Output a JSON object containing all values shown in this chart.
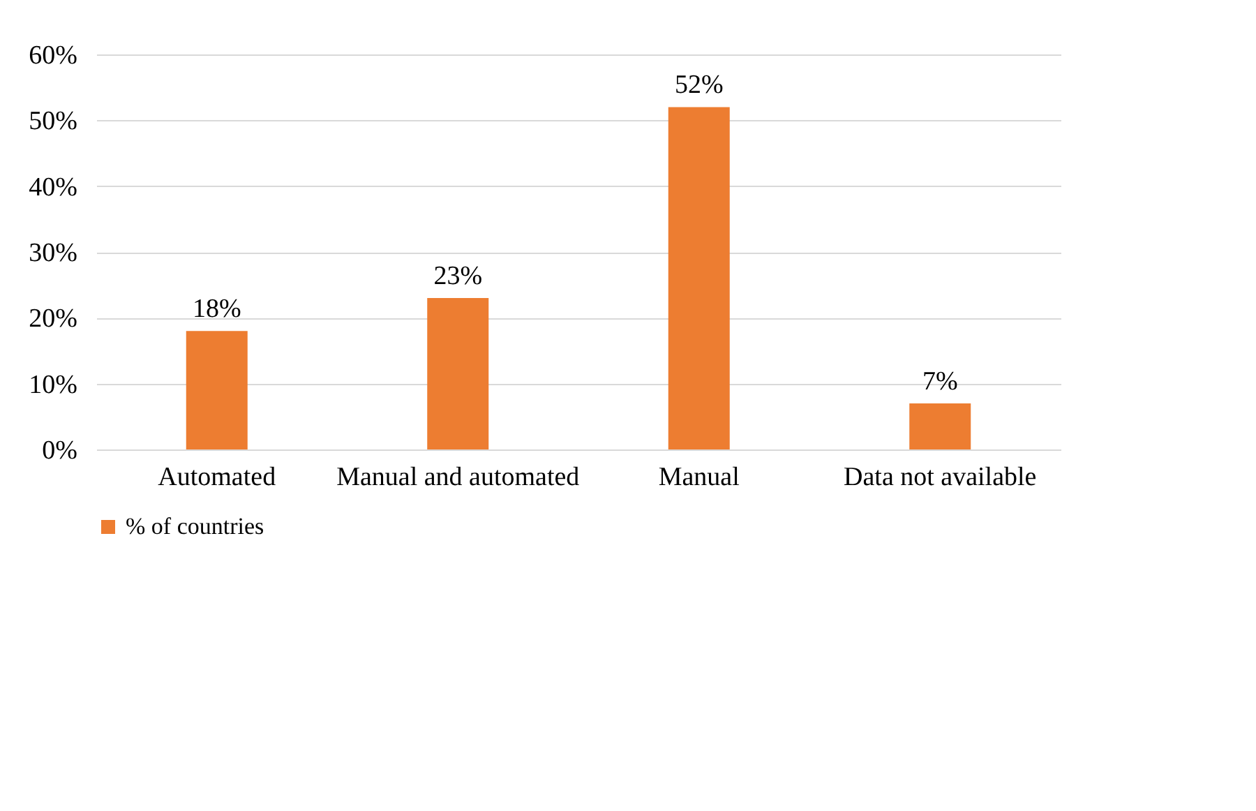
{
  "chart_data": {
    "type": "bar",
    "categories": [
      "Automated",
      "Manual and automated",
      "Manual",
      "Data not available"
    ],
    "series": [
      {
        "name": "% of countries",
        "color": "#ed7d31",
        "values": [
          18,
          23,
          52,
          7
        ]
      }
    ],
    "value_labels": [
      "18%",
      "23%",
      "52%",
      "7%"
    ],
    "ylim": [
      0,
      60
    ],
    "yticks": [
      {
        "value": 0,
        "label": "0%"
      },
      {
        "value": 10,
        "label": "10%"
      },
      {
        "value": 20,
        "label": "20%"
      },
      {
        "value": 30,
        "label": "30%"
      },
      {
        "value": 40,
        "label": "40%"
      },
      {
        "value": 50,
        "label": "50%"
      },
      {
        "value": 60,
        "label": "60%"
      }
    ],
    "grid": "y",
    "legend": "bottom"
  }
}
